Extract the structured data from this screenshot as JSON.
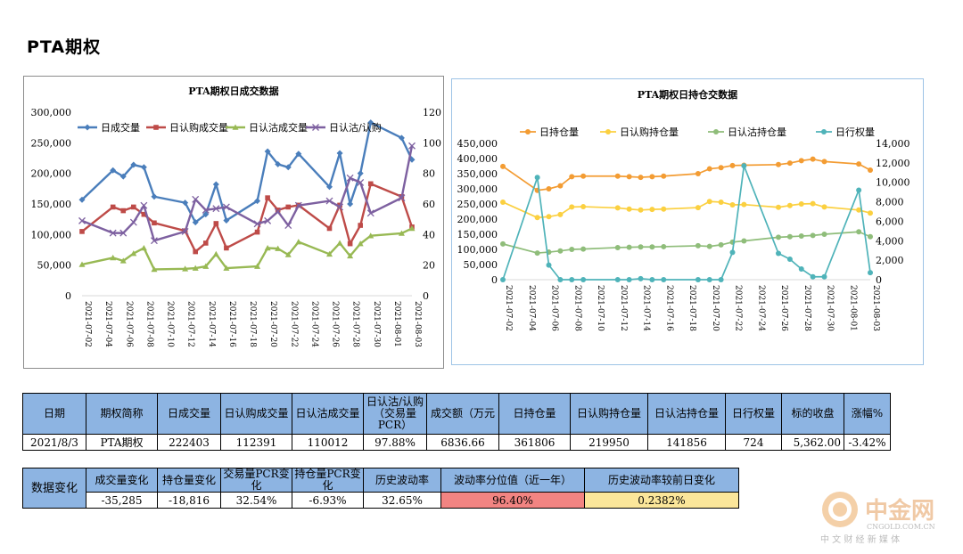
{
  "page": {
    "title": "PTA期权"
  },
  "chart_data": [
    {
      "type": "line",
      "title": "PTA期权日成交数据",
      "x": [
        "2021-07-02",
        "2021-07-05",
        "2021-07-06",
        "2021-07-07",
        "2021-07-08",
        "2021-07-09",
        "2021-07-12",
        "2021-07-13",
        "2021-07-14",
        "2021-07-15",
        "2021-07-16",
        "2021-07-19",
        "2021-07-20",
        "2021-07-21",
        "2021-07-22",
        "2021-07-23",
        "2021-07-26",
        "2021-07-27",
        "2021-07-28",
        "2021-07-29",
        "2021-07-30",
        "2021-08-02",
        "2021-08-03"
      ],
      "x_ticks": [
        "2021-07-02",
        "2021-07-04",
        "2021-07-06",
        "2021-07-08",
        "2021-07-10",
        "2021-07-12",
        "2021-07-14",
        "2021-07-16",
        "2021-07-18",
        "2021-07-20",
        "2021-07-22",
        "2021-07-24",
        "2021-07-26",
        "2021-07-28",
        "2021-07-30",
        "2021-08-01",
        "2021-08-03"
      ],
      "x_range": [
        "2021-07-02",
        "2021-08-03"
      ],
      "y_left": {
        "range": [
          0,
          300000
        ],
        "ticks": [
          "0",
          "50,000",
          "100,000",
          "150,000",
          "200,000",
          "250,000",
          "300,000"
        ]
      },
      "y_right": {
        "range": [
          0,
          120
        ],
        "ticks": [
          "0",
          "20",
          "40",
          "60",
          "80",
          "100",
          "120"
        ]
      },
      "grid": false,
      "legend": "top",
      "series": [
        {
          "name": "日成交量",
          "axis": "left",
          "color": "#4a7ebb",
          "marker": "diamond",
          "values": [
            157000,
            205000,
            195000,
            214000,
            210000,
            162000,
            152000,
            120000,
            133000,
            182000,
            123000,
            155000,
            236000,
            215000,
            210000,
            232000,
            178000,
            233000,
            150000,
            200000,
            283000,
            258000,
            222403
          ]
        },
        {
          "name": "日认购成交量",
          "axis": "left",
          "color": "#be4b48",
          "marker": "square",
          "values": [
            105000,
            145000,
            139000,
            145000,
            133000,
            119000,
            106000,
            72000,
            86000,
            118000,
            78000,
            104000,
            160000,
            140000,
            145000,
            148000,
            110000,
            148000,
            85000,
            115000,
            183000,
            162000,
            112391
          ]
        },
        {
          "name": "日认沽成交量",
          "axis": "left",
          "color": "#98b954",
          "marker": "triangle",
          "values": [
            51000,
            62000,
            57000,
            69000,
            78000,
            43000,
            44000,
            45000,
            48000,
            68000,
            45000,
            48000,
            78000,
            77000,
            67000,
            88000,
            68000,
            86000,
            65000,
            85000,
            98000,
            102000,
            110012
          ]
        },
        {
          "name": "日认沽/认购",
          "axis": "right",
          "color": "#7d60a0",
          "marker": "x",
          "values": [
            49,
            41,
            41,
            48,
            59,
            36,
            42,
            63,
            56,
            57,
            58,
            47,
            49,
            55,
            46,
            59,
            62,
            58,
            77,
            74,
            54,
            64,
            98
          ]
        }
      ]
    },
    {
      "type": "line",
      "title": "PTA期权日持仓交数据",
      "x": [
        "2021-07-02",
        "2021-07-05",
        "2021-07-06",
        "2021-07-07",
        "2021-07-08",
        "2021-07-09",
        "2021-07-12",
        "2021-07-13",
        "2021-07-14",
        "2021-07-15",
        "2021-07-16",
        "2021-07-19",
        "2021-07-20",
        "2021-07-21",
        "2021-07-22",
        "2021-07-23",
        "2021-07-26",
        "2021-07-27",
        "2021-07-28",
        "2021-07-29",
        "2021-07-30",
        "2021-08-02",
        "2021-08-03"
      ],
      "x_ticks": [
        "2021-07-02",
        "2021-07-04",
        "2021-07-06",
        "2021-07-08",
        "2021-07-10",
        "2021-07-12",
        "2021-07-14",
        "2021-07-16",
        "2021-07-18",
        "2021-07-20",
        "2021-07-22",
        "2021-07-24",
        "2021-07-26",
        "2021-07-28",
        "2021-07-30",
        "2021-08-01",
        "2021-08-03"
      ],
      "x_range": [
        "2021-07-02",
        "2021-08-03"
      ],
      "y_left": {
        "range": [
          0,
          450000
        ],
        "ticks": [
          "0",
          "50,000",
          "100,000",
          "150,000",
          "200,000",
          "250,000",
          "300,000",
          "350,000",
          "400,000",
          "450,000"
        ]
      },
      "y_right": {
        "range": [
          0,
          14000
        ],
        "ticks": [
          "0",
          "2,000",
          "4,000",
          "6,000",
          "8,000",
          "10,000",
          "12,000",
          "14,000"
        ]
      },
      "grid": false,
      "legend": "top",
      "series": [
        {
          "name": "日持仓量",
          "axis": "left",
          "color": "#f39c33",
          "marker": "circle",
          "values": [
            374000,
            295000,
            300000,
            310000,
            340000,
            342000,
            342000,
            340000,
            338000,
            340000,
            342000,
            350000,
            366000,
            370000,
            377000,
            378000,
            380000,
            385000,
            393000,
            398000,
            390000,
            382000,
            361806
          ]
        },
        {
          "name": "日认购持仓量",
          "axis": "left",
          "color": "#fbd040",
          "marker": "circle",
          "values": [
            256000,
            205000,
            208000,
            215000,
            240000,
            241000,
            237000,
            233000,
            230000,
            232000,
            233000,
            238000,
            258000,
            256000,
            247000,
            248000,
            239000,
            245000,
            250000,
            251000,
            240000,
            230000,
            219950
          ]
        },
        {
          "name": "日认沽持仓量",
          "axis": "left",
          "color": "#8fbd7a",
          "marker": "circle",
          "values": [
            118000,
            88000,
            91000,
            95000,
            100000,
            101000,
            106000,
            107000,
            108000,
            108000,
            109000,
            112000,
            110000,
            115000,
            124000,
            128000,
            140000,
            142000,
            144000,
            146000,
            150000,
            158000,
            141856
          ]
        },
        {
          "name": "日行权量",
          "axis": "right",
          "color": "#4fb3b9",
          "marker": "circle",
          "values": [
            0,
            10500,
            1500,
            0,
            0,
            0,
            0,
            0,
            100,
            0,
            0,
            0,
            0,
            0,
            2800,
            11700,
            2700,
            2100,
            1100,
            300,
            300,
            9200,
            724
          ]
        }
      ]
    }
  ],
  "stats_table": {
    "headers": [
      "日期",
      "期权简称",
      "日成交量",
      "日认购成交量",
      "日认沽成交量",
      "日认沽/认购（交易量PCR）",
      "成交额（万元",
      "日持仓量",
      "日认购持仓量",
      "日认沽持仓量",
      "日行权量",
      "标的收盘",
      "涨幅%"
    ],
    "row": [
      "2021/8/3",
      "PTA期权",
      "222403",
      "112391",
      "110012",
      "97.88%",
      "6836.66",
      "361806",
      "219950",
      "141856",
      "724",
      "5,362.00",
      "-3.42%"
    ]
  },
  "change_table": {
    "row_header": "数据变化",
    "headers": [
      "成交量变化",
      "持仓量变化",
      "交易量PCR变化",
      "持仓量PCR变化",
      "历史波动率",
      "波动率分位值（近一年）",
      "历史波动率较前日变化"
    ],
    "row": [
      "-35,285",
      "-18,816",
      "32.54%",
      "-6.93%",
      "32.65%",
      "96.40%",
      "0.2382%"
    ],
    "highlight": {
      "5": "#f28482",
      "6": "#fbe69a"
    }
  },
  "watermark": {
    "brand": "中金网",
    "domain": "CNGOLD.COM.CN",
    "tagline": "中 文 财 经 新 媒 体",
    "color": "#e08a3c"
  }
}
